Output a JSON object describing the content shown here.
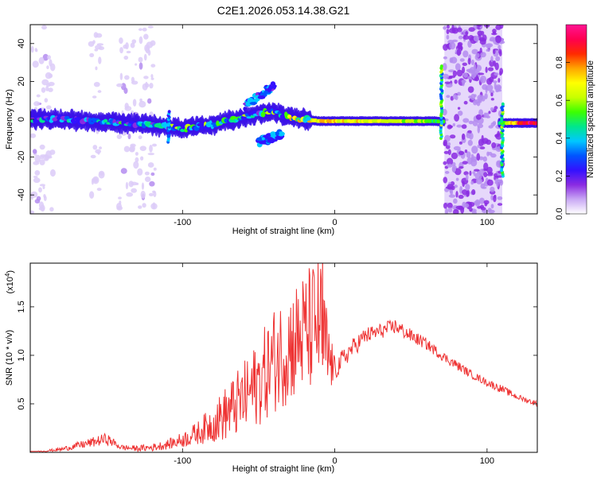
{
  "chart_data": [
    {
      "type": "heatmap",
      "title": "C2E1.2026.053.14.38.G21",
      "xlabel": "Height of straight line (km)",
      "ylabel": "Frequency (Hz)",
      "xlim": [
        -200,
        133
      ],
      "ylim": [
        -50,
        50
      ],
      "xticks": [
        -100,
        0,
        100
      ],
      "xtick_labels": [
        "-100",
        "0",
        "100"
      ],
      "yticks": [
        -40,
        -20,
        0,
        20,
        40
      ],
      "ytick_labels": [
        "-40",
        "-20",
        "0",
        "20",
        "40"
      ],
      "colorbar": {
        "label": "Normalized spectral amplitude",
        "range": [
          0,
          1
        ],
        "ticks": [
          0,
          0.2,
          0.4,
          0.6,
          0.8
        ],
        "tick_labels": [
          "0.0",
          "0.2",
          "0.4",
          "0.6",
          "0.8"
        ],
        "colors": [
          "#ffffff",
          "#c9a8f4",
          "#8a2be2",
          "#3311ff",
          "#0055ff",
          "#00c8ff",
          "#00e68c",
          "#3cff00",
          "#c8ff00",
          "#ffff00",
          "#ffa500",
          "#ff2a00",
          "#ff0050",
          "#ff1493"
        ]
      },
      "ridge": {
        "x": [
          -200,
          -180,
          -160,
          -140,
          -120,
          -100,
          -80,
          -60,
          -50,
          -40,
          -30,
          -20,
          -10,
          0,
          20,
          40,
          60,
          65,
          110,
          120,
          133
        ],
        "y": [
          0,
          0,
          -1,
          -2,
          -3,
          -5,
          -3,
          1,
          3,
          4,
          1,
          0,
          -1,
          -1,
          -1,
          -1,
          -1,
          -1,
          -2,
          -2,
          -2
        ],
        "amplitude": [
          0.35,
          0.3,
          0.3,
          0.35,
          0.35,
          0.45,
          0.4,
          0.4,
          0.35,
          0.45,
          0.5,
          0.55,
          0.75,
          0.75,
          0.7,
          0.65,
          0.6,
          0.55,
          0.5,
          0.9,
          0.95
        ]
      },
      "noise_bands": [
        {
          "x_range": [
            -200,
            -185
          ],
          "amplitude": 0.12
        },
        {
          "x_range": [
            -160,
            -153
          ],
          "amplitude": 0.06
        },
        {
          "x_range": [
            -142,
            -118
          ],
          "amplitude": 0.12
        },
        {
          "x_range": [
            72,
            110
          ],
          "amplitude": 0.3
        }
      ],
      "ridge_branches": [
        {
          "x": [
            -60,
            -40
          ],
          "y": [
            6,
            18
          ],
          "amplitude": 0.3
        },
        {
          "x": [
            -50,
            -35
          ],
          "y": [
            -12,
            -8
          ],
          "amplitude": 0.3
        }
      ]
    },
    {
      "type": "line",
      "title": "",
      "xlabel": "Height of straight line (km)",
      "ylabel": "SNR (10 * v/v)",
      "scale_label": "(x10",
      "scale_exp": "4",
      "scale_close": ")",
      "xlim": [
        -200,
        133
      ],
      "ylim": [
        0,
        1.95
      ],
      "xticks": [
        -100,
        0,
        100
      ],
      "xtick_labels": [
        "-100",
        "0",
        "100"
      ],
      "yticks": [
        0.5,
        1.0,
        1.5
      ],
      "ytick_labels": [
        "0.5",
        "1.0",
        "1.5"
      ],
      "series": [
        {
          "name": "SNR",
          "color": "#ee3333",
          "x": [
            -200,
            -180,
            -160,
            -150,
            -140,
            -130,
            -120,
            -110,
            -100,
            -90,
            -80,
            -70,
            -60,
            -50,
            -40,
            -30,
            -20,
            -10,
            -5,
            0,
            10,
            20,
            30,
            40,
            50,
            60,
            70,
            80,
            90,
            100,
            110,
            120,
            133
          ],
          "y": [
            0.0,
            0.03,
            0.1,
            0.14,
            0.05,
            0.04,
            0.05,
            0.08,
            0.13,
            0.2,
            0.3,
            0.42,
            0.55,
            0.72,
            0.95,
            1.1,
            1.22,
            1.35,
            1.0,
            0.85,
            1.05,
            1.2,
            1.25,
            1.3,
            1.2,
            1.12,
            1.0,
            0.9,
            0.8,
            0.72,
            0.65,
            0.57,
            0.5
          ],
          "spread": [
            0.0,
            0.02,
            0.05,
            0.06,
            0.03,
            0.03,
            0.04,
            0.05,
            0.08,
            0.12,
            0.2,
            0.3,
            0.38,
            0.45,
            0.55,
            0.6,
            0.65,
            0.7,
            0.5,
            0.12,
            0.1,
            0.09,
            0.08,
            0.08,
            0.07,
            0.06,
            0.05,
            0.05,
            0.04,
            0.04,
            0.04,
            0.03,
            0.03
          ]
        }
      ]
    }
  ]
}
